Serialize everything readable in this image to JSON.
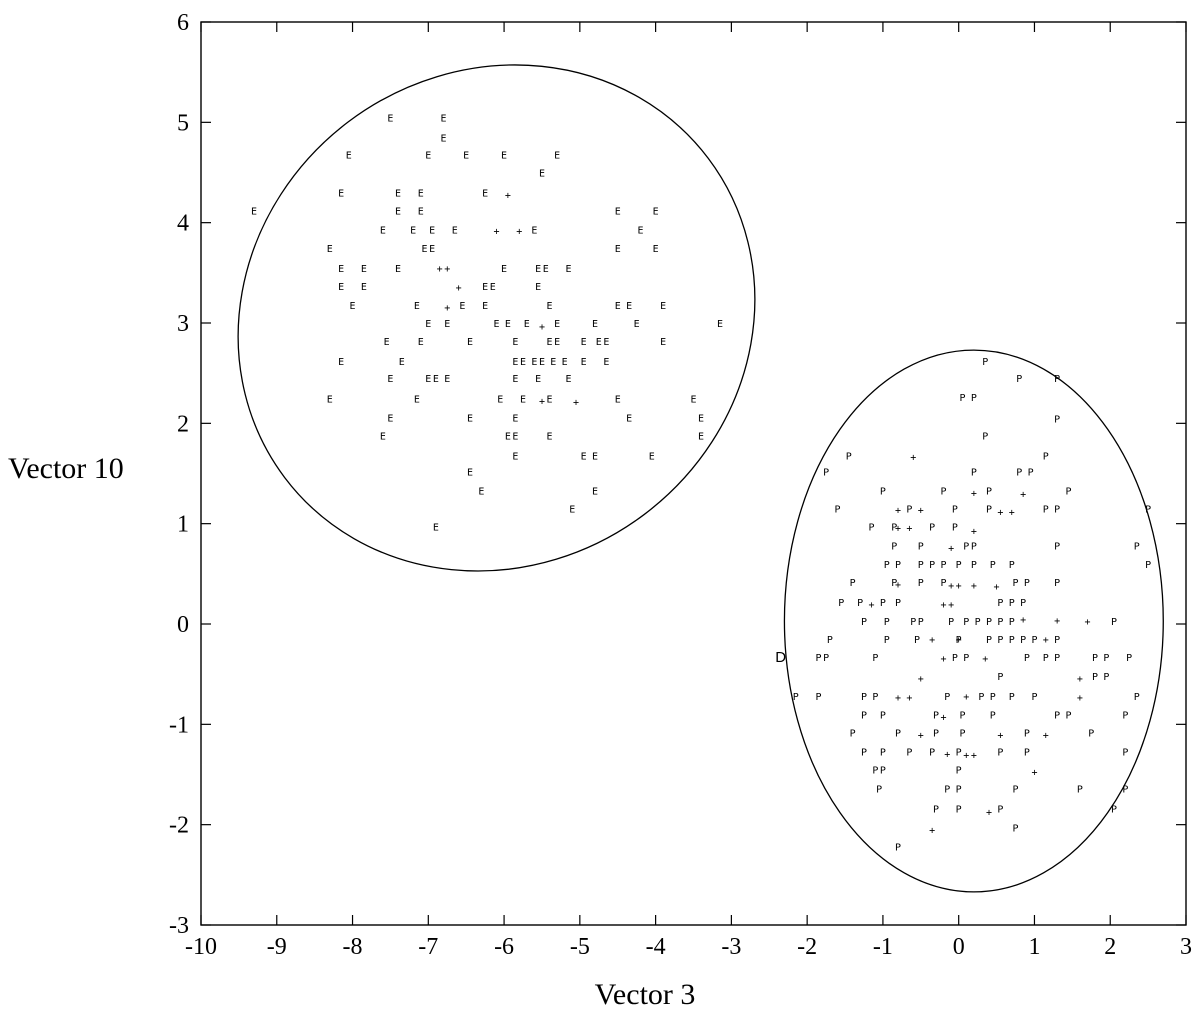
{
  "chart_data": {
    "type": "scatter",
    "xlabel": "Vector 3",
    "ylabel": "Vector 10",
    "xlim": [
      -10,
      3
    ],
    "ylim": [
      -3,
      6
    ],
    "xticks": [
      "-10",
      "-9",
      "-8",
      "-7",
      "-6",
      "-5",
      "-4",
      "-3",
      "-2",
      "-1",
      "0",
      "1",
      "2",
      "3"
    ],
    "yticks": [
      "-3",
      "-2",
      "-1",
      "0",
      "1",
      "2",
      "3",
      "4",
      "5",
      "6"
    ],
    "grid": false,
    "ellipses": [
      {
        "name": "E",
        "cx": -6.1,
        "cy": 3.05,
        "rx": 3.5,
        "ry": 2.45,
        "rotation_deg": -37
      },
      {
        "name": "P",
        "cx": 0.2,
        "cy": 0.03,
        "rx": 2.5,
        "ry": 2.7,
        "rotation_deg": 0
      }
    ],
    "series": [
      {
        "name": "E",
        "marker": "E",
        "points": [
          [
            -7.5,
            5.05
          ],
          [
            -6.8,
            5.05
          ],
          [
            -6.8,
            4.85
          ],
          [
            -8.05,
            4.68
          ],
          [
            -7.0,
            4.68
          ],
          [
            -6.5,
            4.68
          ],
          [
            -6.0,
            4.68
          ],
          [
            -5.3,
            4.68
          ],
          [
            -5.5,
            4.5
          ],
          [
            -8.15,
            4.3
          ],
          [
            -7.4,
            4.3
          ],
          [
            -7.1,
            4.3
          ],
          [
            -6.25,
            4.3
          ],
          [
            -9.3,
            4.12
          ],
          [
            -7.4,
            4.12
          ],
          [
            -7.1,
            4.12
          ],
          [
            -4.5,
            4.12
          ],
          [
            -4.0,
            4.12
          ],
          [
            -7.6,
            3.93
          ],
          [
            -7.2,
            3.93
          ],
          [
            -6.95,
            3.93
          ],
          [
            -6.65,
            3.93
          ],
          [
            -5.6,
            3.93
          ],
          [
            -4.2,
            3.93
          ],
          [
            -8.3,
            3.75
          ],
          [
            -7.05,
            3.75
          ],
          [
            -6.95,
            3.75
          ],
          [
            -4.5,
            3.75
          ],
          [
            -4.0,
            3.75
          ],
          [
            -8.15,
            3.55
          ],
          [
            -7.85,
            3.55
          ],
          [
            -7.4,
            3.55
          ],
          [
            -6.0,
            3.55
          ],
          [
            -5.55,
            3.55
          ],
          [
            -5.45,
            3.55
          ],
          [
            -5.15,
            3.55
          ],
          [
            -8.15,
            3.37
          ],
          [
            -7.85,
            3.37
          ],
          [
            -6.25,
            3.37
          ],
          [
            -6.15,
            3.37
          ],
          [
            -5.55,
            3.37
          ],
          [
            -8.0,
            3.18
          ],
          [
            -7.15,
            3.18
          ],
          [
            -6.55,
            3.18
          ],
          [
            -6.25,
            3.18
          ],
          [
            -5.4,
            3.18
          ],
          [
            -4.5,
            3.18
          ],
          [
            -4.35,
            3.18
          ],
          [
            -3.9,
            3.18
          ],
          [
            -7.0,
            3.0
          ],
          [
            -6.75,
            3.0
          ],
          [
            -6.1,
            3.0
          ],
          [
            -5.95,
            3.0
          ],
          [
            -5.7,
            3.0
          ],
          [
            -5.3,
            3.0
          ],
          [
            -4.8,
            3.0
          ],
          [
            -4.25,
            3.0
          ],
          [
            -3.15,
            3.0
          ],
          [
            -7.55,
            2.82
          ],
          [
            -7.1,
            2.82
          ],
          [
            -6.45,
            2.82
          ],
          [
            -5.85,
            2.82
          ],
          [
            -5.4,
            2.82
          ],
          [
            -5.3,
            2.82
          ],
          [
            -4.95,
            2.82
          ],
          [
            -4.75,
            2.82
          ],
          [
            -4.65,
            2.82
          ],
          [
            -3.9,
            2.82
          ],
          [
            -8.15,
            2.62
          ],
          [
            -7.35,
            2.62
          ],
          [
            -5.85,
            2.62
          ],
          [
            -5.75,
            2.62
          ],
          [
            -5.6,
            2.62
          ],
          [
            -5.5,
            2.62
          ],
          [
            -5.35,
            2.62
          ],
          [
            -5.2,
            2.62
          ],
          [
            -4.95,
            2.62
          ],
          [
            -4.65,
            2.62
          ],
          [
            -7.5,
            2.45
          ],
          [
            -7.0,
            2.45
          ],
          [
            -6.9,
            2.45
          ],
          [
            -6.75,
            2.45
          ],
          [
            -5.85,
            2.45
          ],
          [
            -5.55,
            2.45
          ],
          [
            -5.15,
            2.45
          ],
          [
            -8.3,
            2.25
          ],
          [
            -7.15,
            2.25
          ],
          [
            -6.05,
            2.25
          ],
          [
            -5.75,
            2.25
          ],
          [
            -5.4,
            2.25
          ],
          [
            -4.5,
            2.25
          ],
          [
            -3.5,
            2.25
          ],
          [
            -7.5,
            2.06
          ],
          [
            -6.45,
            2.06
          ],
          [
            -5.85,
            2.06
          ],
          [
            -4.35,
            2.06
          ],
          [
            -3.4,
            2.06
          ],
          [
            -7.6,
            1.88
          ],
          [
            -5.95,
            1.88
          ],
          [
            -5.85,
            1.88
          ],
          [
            -5.4,
            1.88
          ],
          [
            -3.4,
            1.88
          ],
          [
            -5.85,
            1.68
          ],
          [
            -4.95,
            1.68
          ],
          [
            -4.8,
            1.68
          ],
          [
            -4.05,
            1.68
          ],
          [
            -6.45,
            1.52
          ],
          [
            -6.3,
            1.33
          ],
          [
            -4.8,
            1.33
          ],
          [
            -5.1,
            1.15
          ],
          [
            -6.9,
            0.97
          ]
        ]
      },
      {
        "name": "P",
        "marker": "P",
        "points": [
          [
            0.35,
            2.62
          ],
          [
            0.8,
            2.45
          ],
          [
            1.3,
            2.45
          ],
          [
            0.05,
            2.26
          ],
          [
            0.2,
            2.26
          ],
          [
            1.3,
            2.05
          ],
          [
            0.35,
            1.88
          ],
          [
            -1.45,
            1.68
          ],
          [
            1.15,
            1.68
          ],
          [
            -1.75,
            1.52
          ],
          [
            0.2,
            1.52
          ],
          [
            0.8,
            1.52
          ],
          [
            0.95,
            1.52
          ],
          [
            -1.0,
            1.33
          ],
          [
            -0.2,
            1.33
          ],
          [
            0.4,
            1.33
          ],
          [
            1.45,
            1.33
          ],
          [
            -1.6,
            1.15
          ],
          [
            -0.65,
            1.15
          ],
          [
            -0.05,
            1.15
          ],
          [
            0.4,
            1.15
          ],
          [
            1.15,
            1.15
          ],
          [
            1.3,
            1.15
          ],
          [
            2.5,
            1.15
          ],
          [
            -1.15,
            0.97
          ],
          [
            -0.85,
            0.97
          ],
          [
            -0.35,
            0.97
          ],
          [
            -0.05,
            0.97
          ],
          [
            -0.85,
            0.78
          ],
          [
            -0.5,
            0.78
          ],
          [
            0.1,
            0.78
          ],
          [
            0.2,
            0.78
          ],
          [
            1.3,
            0.78
          ],
          [
            2.35,
            0.78
          ],
          [
            -0.95,
            0.6
          ],
          [
            -0.8,
            0.6
          ],
          [
            -0.5,
            0.6
          ],
          [
            -0.35,
            0.6
          ],
          [
            -0.2,
            0.6
          ],
          [
            0.0,
            0.6
          ],
          [
            0.2,
            0.6
          ],
          [
            0.45,
            0.6
          ],
          [
            0.7,
            0.6
          ],
          [
            2.5,
            0.6
          ],
          [
            -1.4,
            0.42
          ],
          [
            -0.85,
            0.42
          ],
          [
            -0.5,
            0.42
          ],
          [
            -0.2,
            0.42
          ],
          [
            0.75,
            0.42
          ],
          [
            0.9,
            0.42
          ],
          [
            1.3,
            0.42
          ],
          [
            -1.55,
            0.22
          ],
          [
            -1.3,
            0.22
          ],
          [
            -1.0,
            0.22
          ],
          [
            -0.8,
            0.22
          ],
          [
            0.55,
            0.22
          ],
          [
            0.7,
            0.22
          ],
          [
            0.85,
            0.22
          ],
          [
            -1.25,
            0.03
          ],
          [
            -0.95,
            0.03
          ],
          [
            -0.6,
            0.03
          ],
          [
            -0.5,
            0.03
          ],
          [
            -0.1,
            0.03
          ],
          [
            0.1,
            0.03
          ],
          [
            0.25,
            0.03
          ],
          [
            0.4,
            0.03
          ],
          [
            0.55,
            0.03
          ],
          [
            0.7,
            0.03
          ],
          [
            2.05,
            0.03
          ],
          [
            -1.7,
            -0.15
          ],
          [
            -0.95,
            -0.15
          ],
          [
            -0.55,
            -0.15
          ],
          [
            0.0,
            -0.15
          ],
          [
            0.4,
            -0.15
          ],
          [
            0.55,
            -0.15
          ],
          [
            0.7,
            -0.15
          ],
          [
            0.85,
            -0.15
          ],
          [
            1.0,
            -0.15
          ],
          [
            1.3,
            -0.15
          ],
          [
            -1.85,
            -0.33
          ],
          [
            -1.75,
            -0.33
          ],
          [
            -1.1,
            -0.33
          ],
          [
            -0.05,
            -0.33
          ],
          [
            0.1,
            -0.33
          ],
          [
            0.9,
            -0.33
          ],
          [
            1.15,
            -0.33
          ],
          [
            1.3,
            -0.33
          ],
          [
            1.8,
            -0.33
          ],
          [
            1.95,
            -0.33
          ],
          [
            2.25,
            -0.33
          ],
          [
            0.55,
            -0.52
          ],
          [
            1.8,
            -0.52
          ],
          [
            1.95,
            -0.52
          ],
          [
            -2.15,
            -0.72
          ],
          [
            -1.85,
            -0.72
          ],
          [
            -1.25,
            -0.72
          ],
          [
            -1.1,
            -0.72
          ],
          [
            -0.15,
            -0.72
          ],
          [
            0.3,
            -0.72
          ],
          [
            0.45,
            -0.72
          ],
          [
            0.7,
            -0.72
          ],
          [
            1.0,
            -0.72
          ],
          [
            2.35,
            -0.72
          ],
          [
            -1.25,
            -0.9
          ],
          [
            -1.0,
            -0.9
          ],
          [
            -0.3,
            -0.9
          ],
          [
            0.05,
            -0.9
          ],
          [
            0.45,
            -0.9
          ],
          [
            1.3,
            -0.9
          ],
          [
            1.45,
            -0.9
          ],
          [
            2.2,
            -0.9
          ],
          [
            -1.4,
            -1.08
          ],
          [
            -0.8,
            -1.08
          ],
          [
            -0.3,
            -1.08
          ],
          [
            0.05,
            -1.08
          ],
          [
            0.9,
            -1.08
          ],
          [
            1.75,
            -1.08
          ],
          [
            -1.25,
            -1.27
          ],
          [
            -1.0,
            -1.27
          ],
          [
            -0.65,
            -1.27
          ],
          [
            -0.35,
            -1.27
          ],
          [
            0.0,
            -1.27
          ],
          [
            0.55,
            -1.27
          ],
          [
            0.9,
            -1.27
          ],
          [
            2.2,
            -1.27
          ],
          [
            -1.1,
            -1.45
          ],
          [
            -1.0,
            -1.45
          ],
          [
            0.0,
            -1.45
          ],
          [
            -1.05,
            -1.64
          ],
          [
            -0.15,
            -1.64
          ],
          [
            0.0,
            -1.64
          ],
          [
            0.75,
            -1.64
          ],
          [
            1.6,
            -1.64
          ],
          [
            2.2,
            -1.64
          ],
          [
            -0.3,
            -1.84
          ],
          [
            0.0,
            -1.84
          ],
          [
            0.55,
            -1.84
          ],
          [
            2.05,
            -1.84
          ],
          [
            0.75,
            -2.03
          ],
          [
            -0.8,
            -2.22
          ]
        ]
      },
      {
        "name": "+",
        "marker": "+",
        "points": [
          [
            -5.95,
            4.28
          ],
          [
            -6.1,
            3.92
          ],
          [
            -5.8,
            3.92
          ],
          [
            -6.85,
            3.55
          ],
          [
            -6.75,
            3.55
          ],
          [
            -6.6,
            3.36
          ],
          [
            -6.75,
            3.16
          ],
          [
            -5.5,
            2.97
          ],
          [
            -5.5,
            2.23
          ],
          [
            -5.05,
            2.22
          ],
          [
            -0.6,
            1.67
          ],
          [
            0.2,
            1.31
          ],
          [
            0.85,
            1.3
          ],
          [
            -0.8,
            1.14
          ],
          [
            -0.5,
            1.14
          ],
          [
            0.55,
            1.12
          ],
          [
            0.7,
            1.12
          ],
          [
            -0.8,
            0.96
          ],
          [
            -0.65,
            0.96
          ],
          [
            0.2,
            0.93
          ],
          [
            -0.1,
            0.76
          ],
          [
            -0.8,
            0.4
          ],
          [
            -0.1,
            0.39
          ],
          [
            0.0,
            0.39
          ],
          [
            0.2,
            0.39
          ],
          [
            0.5,
            0.38
          ],
          [
            -1.15,
            0.2
          ],
          [
            -0.2,
            0.2
          ],
          [
            -0.1,
            0.2
          ],
          [
            0.85,
            0.05
          ],
          [
            1.3,
            0.04
          ],
          [
            1.7,
            0.03
          ],
          [
            -0.35,
            -0.15
          ],
          [
            0.0,
            -0.15
          ],
          [
            1.15,
            -0.15
          ],
          [
            -0.2,
            -0.34
          ],
          [
            0.35,
            -0.34
          ],
          [
            -0.5,
            -0.54
          ],
          [
            1.6,
            -0.54
          ],
          [
            -0.8,
            -0.73
          ],
          [
            -0.65,
            -0.73
          ],
          [
            0.1,
            -0.72
          ],
          [
            1.6,
            -0.73
          ],
          [
            -0.2,
            -0.92
          ],
          [
            -0.5,
            -1.1
          ],
          [
            0.55,
            -1.1
          ],
          [
            1.15,
            -1.1
          ],
          [
            -0.15,
            -1.29
          ],
          [
            0.1,
            -1.3
          ],
          [
            0.2,
            -1.3
          ],
          [
            1.0,
            -1.47
          ],
          [
            0.4,
            -1.87
          ],
          [
            -0.35,
            -2.05
          ]
        ]
      },
      {
        "name": "D",
        "marker": "D",
        "points": [
          [
            -2.35,
            -0.33
          ]
        ]
      }
    ]
  }
}
